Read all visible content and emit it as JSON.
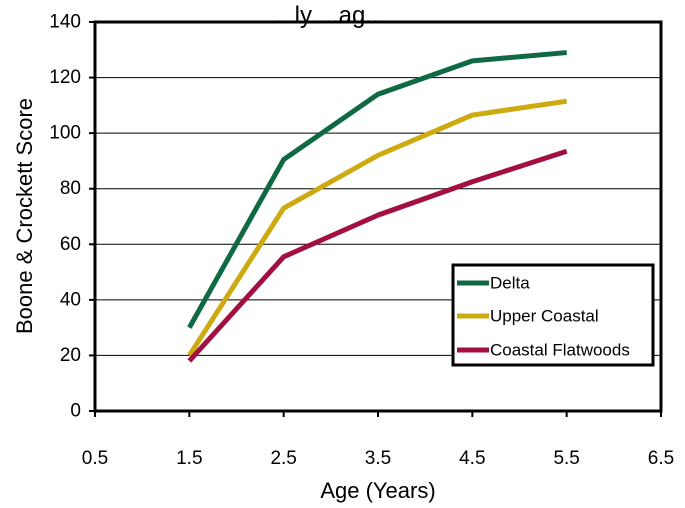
{
  "chart_data": {
    "type": "line",
    "title": "...ly ...ag...",
    "xlabel": "Age (Years)",
    "ylabel": "Boone & Crockett Score",
    "xlim": [
      0.5,
      6.5
    ],
    "ylim": [
      0,
      140
    ],
    "xticks": [
      "0.5",
      "1.5",
      "2.5",
      "3.5",
      "4.5",
      "5.5",
      "6.5"
    ],
    "yticks": [
      "0",
      "20",
      "40",
      "60",
      "80",
      "100",
      "120",
      "140"
    ],
    "grid": "horizontal",
    "legend_position": "lower-right",
    "x": [
      1.5,
      2.5,
      3.5,
      4.5,
      5.5
    ],
    "series": [
      {
        "name": "Delta",
        "color": "#0f6a44",
        "values": [
          30,
          90.5,
          114,
          126,
          129
        ]
      },
      {
        "name": "Upper Coastal",
        "color": "#ccaa10",
        "values": [
          20,
          73,
          92,
          106.5,
          111.5
        ]
      },
      {
        "name": "Coastal Flatwoods",
        "color": "#a3103f",
        "values": [
          18,
          55.5,
          70.5,
          82.5,
          93.5
        ]
      }
    ]
  }
}
